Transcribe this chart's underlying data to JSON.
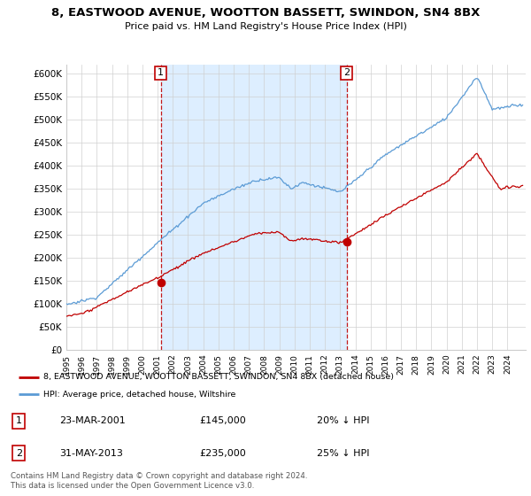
{
  "title": "8, EASTWOOD AVENUE, WOOTTON BASSETT, SWINDON, SN4 8BX",
  "subtitle": "Price paid vs. HM Land Registry's House Price Index (HPI)",
  "ylabel_ticks": [
    "£0",
    "£50K",
    "£100K",
    "£150K",
    "£200K",
    "£250K",
    "£300K",
    "£350K",
    "£400K",
    "£450K",
    "£500K",
    "£550K",
    "£600K"
  ],
  "ytick_values": [
    0,
    50000,
    100000,
    150000,
    200000,
    250000,
    300000,
    350000,
    400000,
    450000,
    500000,
    550000,
    600000
  ],
  "ylim": [
    0,
    620000
  ],
  "xlim_start": 1995.0,
  "xlim_end": 2025.2,
  "hpi_color": "#5b9bd5",
  "price_color": "#c00000",
  "shade_color": "#ddeeff",
  "marker1_date": 2001.21,
  "marker1_price": 145000,
  "marker2_date": 2013.42,
  "marker2_price": 235000,
  "legend_label1": "8, EASTWOOD AVENUE, WOOTTON BASSETT, SWINDON, SN4 8BX (detached house)",
  "legend_label2": "HPI: Average price, detached house, Wiltshire",
  "table_row1": [
    "1",
    "23-MAR-2001",
    "£145,000",
    "20% ↓ HPI"
  ],
  "table_row2": [
    "2",
    "31-MAY-2013",
    "£235,000",
    "25% ↓ HPI"
  ],
  "footer": "Contains HM Land Registry data © Crown copyright and database right 2024.\nThis data is licensed under the Open Government Licence v3.0.",
  "background_color": "#ffffff",
  "grid_color": "#d0d0d0"
}
